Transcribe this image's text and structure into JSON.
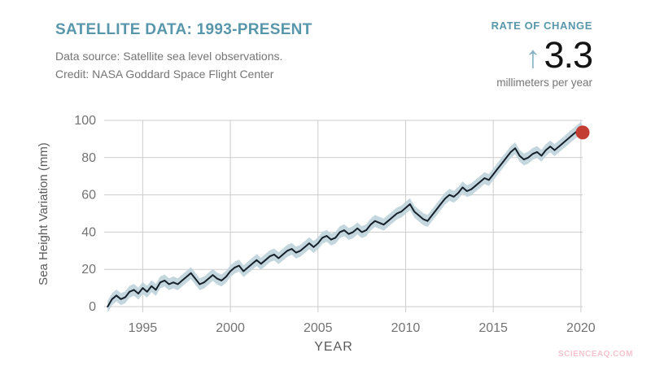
{
  "header": {
    "title": "SATELLITE DATA: 1993-PRESENT",
    "source": "Data source: Satellite sea level observations.",
    "credit": "Credit: NASA Goddard Space Flight Center"
  },
  "rate_panel": {
    "label": "RATE OF CHANGE",
    "arrow_glyph": "↑",
    "value": "3.3",
    "unit": "millimeters per year"
  },
  "watermark": {
    "text": "SCIENCEAQ.COM"
  },
  "colors": {
    "accent_teal": "#5897ab",
    "arrow_teal": "#85b2c6",
    "line": "#16202a",
    "band": "#bed2da",
    "grid": "#cccccc",
    "tick_text": "#737373",
    "subtitle_text": "#757575",
    "axis_label_text": "#5a5a5a",
    "value_text": "#141414",
    "endpoint_red": "#c43d32",
    "watermark_pink": "#f5c3ce"
  },
  "chart_data": {
    "type": "line",
    "title": "SATELLITE DATA: 1993-PRESENT",
    "xlabel": "YEAR",
    "ylabel": "Sea Height Variation (mm)",
    "xlim": [
      1992.8,
      2020.1
    ],
    "ylim": [
      0,
      100
    ],
    "xticks": [
      1995,
      2000,
      2005,
      2010,
      2015,
      2020
    ],
    "yticks": [
      0,
      20,
      40,
      60,
      80,
      100
    ],
    "grid": true,
    "legend": false,
    "band_halfwidth_mm": 3.2,
    "endpoint": {
      "x": 2020.1,
      "y": 93.5,
      "color": "#c43d32"
    },
    "series": [
      {
        "name": "Sea height variation (mm)",
        "x": [
          1993,
          1993.25,
          1993.5,
          1993.75,
          1994,
          1994.25,
          1994.5,
          1994.75,
          1995,
          1995.25,
          1995.5,
          1995.75,
          1996,
          1996.25,
          1996.5,
          1996.75,
          1997,
          1997.25,
          1997.5,
          1997.75,
          1998,
          1998.25,
          1998.5,
          1998.75,
          1999,
          1999.25,
          1999.5,
          1999.75,
          2000,
          2000.25,
          2000.5,
          2000.75,
          2001,
          2001.25,
          2001.5,
          2001.75,
          2002,
          2002.25,
          2002.5,
          2002.75,
          2003,
          2003.25,
          2003.5,
          2003.75,
          2004,
          2004.25,
          2004.5,
          2004.75,
          2005,
          2005.25,
          2005.5,
          2005.75,
          2006,
          2006.25,
          2006.5,
          2006.75,
          2007,
          2007.25,
          2007.5,
          2007.75,
          2008,
          2008.25,
          2008.5,
          2008.75,
          2009,
          2009.25,
          2009.5,
          2009.75,
          2010,
          2010.25,
          2010.5,
          2010.75,
          2011,
          2011.25,
          2011.5,
          2011.75,
          2012,
          2012.25,
          2012.5,
          2012.75,
          2013,
          2013.25,
          2013.5,
          2013.75,
          2014,
          2014.25,
          2014.5,
          2014.75,
          2015,
          2015.25,
          2015.5,
          2015.75,
          2016,
          2016.25,
          2016.5,
          2016.75,
          2017,
          2017.25,
          2017.5,
          2017.75,
          2018,
          2018.25,
          2018.5,
          2018.75,
          2019,
          2019.25,
          2019.5,
          2019.75,
          2020,
          2020.1
        ],
        "y": [
          0,
          4,
          6,
          4,
          5,
          8,
          9,
          7,
          10,
          8,
          11,
          9,
          13,
          14,
          12,
          13,
          12,
          14,
          16,
          18,
          15,
          12,
          13,
          15,
          17,
          15,
          14,
          16,
          19,
          21,
          22,
          19,
          21,
          23,
          25,
          23,
          25,
          27,
          28,
          26,
          28,
          30,
          31,
          29,
          30,
          32,
          34,
          32,
          34,
          37,
          38,
          36,
          37,
          40,
          41,
          39,
          40,
          42,
          40,
          41,
          44,
          46,
          45,
          44,
          46,
          48,
          50,
          51,
          53,
          55,
          51,
          49,
          47,
          46,
          49,
          52,
          55,
          58,
          60,
          59,
          61,
          64,
          62,
          63,
          65,
          67,
          69,
          68,
          71,
          74,
          77,
          80,
          83,
          85,
          81,
          79,
          80,
          82,
          83,
          81,
          84,
          86,
          84,
          86,
          88,
          90,
          92,
          94,
          96,
          93.5
        ]
      }
    ]
  }
}
